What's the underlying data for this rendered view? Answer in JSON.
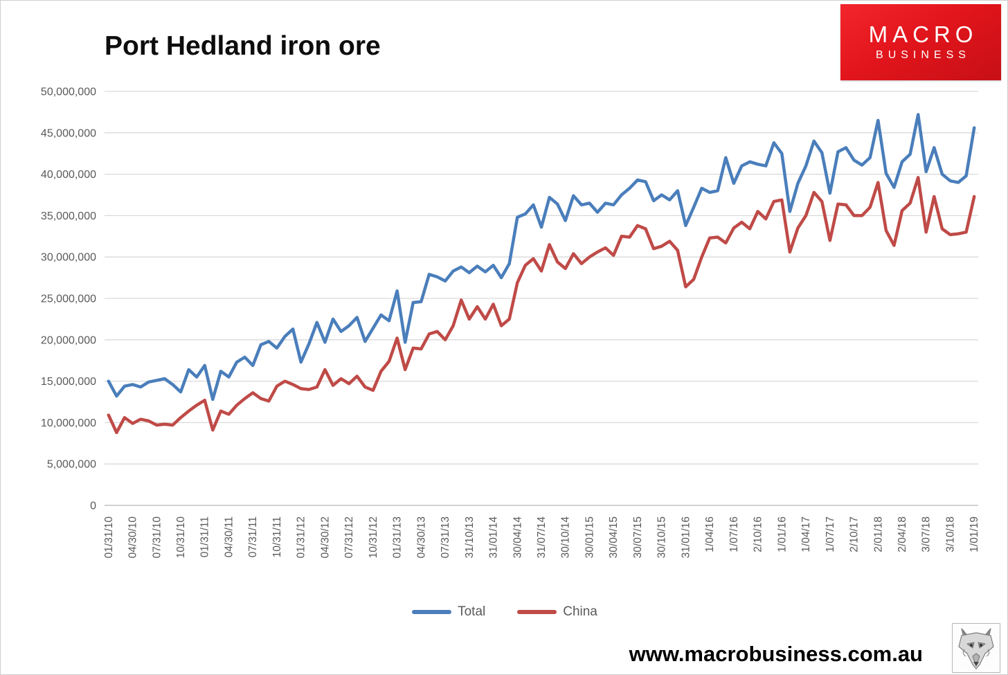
{
  "header": {
    "title": "Port Hedland iron ore"
  },
  "logo": {
    "line1": "MACRO",
    "line2": "BUSINESS",
    "bg_color": "#e2151c",
    "text_color": "#ffffff",
    "icon": "macrobusiness-logo"
  },
  "legend": {
    "items": [
      {
        "label": "Total"
      },
      {
        "label": "China"
      }
    ]
  },
  "footer": {
    "website": "www.macrobusiness.com.au",
    "icon": "wolf-head-sketch"
  },
  "chart_data": {
    "type": "line",
    "title": "Port Hedland iron ore",
    "unit": "tonnes per month",
    "grid": true,
    "legend_position": "bottom",
    "x_axis": {
      "first_month": "Jan 2010",
      "last_month": "Jan 2019",
      "months_per_tick": 3,
      "tick_labels": [
        "01/31/10",
        "04/30/10",
        "07/31/10",
        "10/31/10",
        "01/31/11",
        "04/30/11",
        "07/31/11",
        "10/31/11",
        "01/31/12",
        "04/30/12",
        "07/31/12",
        "10/31/12",
        "01/31/13",
        "04/30/13",
        "07/31/13",
        "31/10/13",
        "31/01/14",
        "30/04/14",
        "31/07/14",
        "30/10/14",
        "30/01/15",
        "30/04/15",
        "30/07/15",
        "30/10/15",
        "31/01/16",
        "1/04/16",
        "1/07/16",
        "2/10/16",
        "1/01/16",
        "1/04/17",
        "1/07/17",
        "2/10/17",
        "2/01/18",
        "2/04/18",
        "3/07/18",
        "3/10/18",
        "1/01/19"
      ]
    },
    "y_axis": {
      "min": 0,
      "max": 50000000,
      "step": 5000000,
      "tick_labels": [
        "0",
        "5,000,000",
        "10,000,000",
        "15,000,000",
        "20,000,000",
        "25,000,000",
        "30,000,000",
        "35,000,000",
        "40,000,000",
        "45,000,000",
        "50,000,000"
      ]
    },
    "series": [
      {
        "name": "Total",
        "color": "#4a7ebb",
        "values": [
          15000000,
          13200000,
          14400000,
          14600000,
          14300000,
          14900000,
          15100000,
          15300000,
          14600000,
          13700000,
          16400000,
          15500000,
          16900000,
          12800000,
          16200000,
          15500000,
          17300000,
          17900000,
          16900000,
          19400000,
          19800000,
          19000000,
          20400000,
          21300000,
          17300000,
          19500000,
          22100000,
          19700000,
          22500000,
          21000000,
          21700000,
          22700000,
          19800000,
          21400000,
          23000000,
          22300000,
          25900000,
          19700000,
          24500000,
          24600000,
          27900000,
          27600000,
          27100000,
          28300000,
          28800000,
          28100000,
          28900000,
          28200000,
          29000000,
          27500000,
          29200000,
          34800000,
          35200000,
          36300000,
          33600000,
          37200000,
          36400000,
          34400000,
          37400000,
          36300000,
          36500000,
          35400000,
          36500000,
          36300000,
          37500000,
          38300000,
          39300000,
          39100000,
          36800000,
          37500000,
          36900000,
          38000000,
          33800000,
          36000000,
          38300000,
          37800000,
          38000000,
          42000000,
          38900000,
          41000000,
          41500000,
          41200000,
          41000000,
          43800000,
          42500000,
          35500000,
          38900000,
          41000000,
          44000000,
          42600000,
          37700000,
          42700000,
          43200000,
          41700000,
          41100000,
          42000000,
          46500000,
          40100000,
          38400000,
          41500000,
          42400000,
          47200000,
          40300000,
          43200000,
          40000000,
          39200000,
          39000000,
          39800000,
          45600000
        ]
      },
      {
        "name": "China",
        "color": "#bf4a47",
        "values": [
          10900000,
          8800000,
          10600000,
          9900000,
          10400000,
          10200000,
          9700000,
          9800000,
          9700000,
          10600000,
          11400000,
          12100000,
          12700000,
          9100000,
          11400000,
          11000000,
          12100000,
          12900000,
          13600000,
          12900000,
          12600000,
          14400000,
          15000000,
          14600000,
          14100000,
          14000000,
          14300000,
          16400000,
          14500000,
          15300000,
          14700000,
          15600000,
          14300000,
          13900000,
          16200000,
          17400000,
          20200000,
          16400000,
          19000000,
          18900000,
          20700000,
          21000000,
          20000000,
          21700000,
          24800000,
          22500000,
          24000000,
          22500000,
          24300000,
          21700000,
          22500000,
          26900000,
          29000000,
          29800000,
          28300000,
          31500000,
          29400000,
          28600000,
          30400000,
          29200000,
          30000000,
          30600000,
          31100000,
          30200000,
          32500000,
          32400000,
          33800000,
          33400000,
          31000000,
          31300000,
          31900000,
          30800000,
          26400000,
          27300000,
          30000000,
          32300000,
          32400000,
          31700000,
          33500000,
          34200000,
          33400000,
          35500000,
          34600000,
          36700000,
          36900000,
          30600000,
          33500000,
          35000000,
          37800000,
          36700000,
          32000000,
          36400000,
          36300000,
          35000000,
          35000000,
          36000000,
          39000000,
          33200000,
          31400000,
          35600000,
          36500000,
          39600000,
          33000000,
          37300000,
          33400000,
          32700000,
          32800000,
          33000000,
          37300000
        ]
      }
    ]
  }
}
